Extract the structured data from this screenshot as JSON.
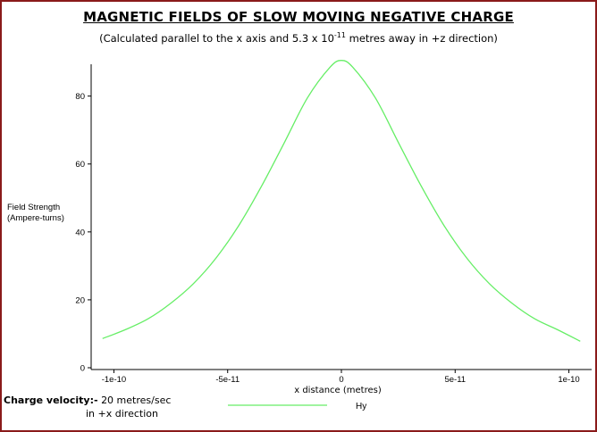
{
  "title": "MAGNETIC FIELDS OF SLOW MOVING NEGATIVE CHARGE",
  "subtitle": {
    "before": "(Calculated parallel to the x axis and 5.3 x 10",
    "exponent": "-11",
    "after": " metres away in +z direction)"
  },
  "ylabel_line1": "Field Strength",
  "ylabel_line2": "(Ampere-turns)",
  "xlabel": "x distance (metres)",
  "velocity": {
    "label": "Charge velocity:-",
    "line1": "20 metres/sec",
    "line2": "in +x direction"
  },
  "colors": {
    "frame": "#8a1a1a",
    "series": "#66ee66",
    "axis": "#000000"
  },
  "chart_data": {
    "type": "line",
    "title": "MAGNETIC FIELDS OF SLOW MOVING NEGATIVE CHARGE",
    "xlabel": "x distance (metres)",
    "ylabel": "Field Strength (Ampere-turns)",
    "xlim": [
      -1.1e-10,
      1.1e-10
    ],
    "ylim": [
      0,
      92
    ],
    "x_ticks": [
      -1e-10,
      -5e-11,
      0,
      5e-11,
      1e-10
    ],
    "x_tick_labels": [
      "-1e-10",
      "-5e-11",
      "0",
      "5e-11",
      "1e-10"
    ],
    "y_ticks": [
      0,
      20,
      40,
      60,
      80
    ],
    "y_tick_labels": [
      "0",
      "20",
      "40",
      "60",
      "80"
    ],
    "grid": false,
    "legend_position": "bottom",
    "series": [
      {
        "name": "Hy",
        "x": [
          -1.05e-10,
          -9.5e-11,
          -8.5e-11,
          -7.5e-11,
          -6.5e-11,
          -5.5e-11,
          -4.5e-11,
          -3.5e-11,
          -2.5e-11,
          -1.5e-11,
          -5e-12,
          0,
          5e-12,
          1.5e-11,
          2.5e-11,
          3.5e-11,
          4.5e-11,
          5.5e-11,
          6.5e-11,
          7.5e-11,
          8.5e-11,
          9.5e-11,
          1.05e-10
        ],
        "y": [
          8.6,
          11.2,
          14.4,
          19.0,
          24.8,
          32.4,
          42.0,
          53.6,
          66.4,
          79.4,
          88.5,
          90.5,
          88.5,
          79.4,
          66.4,
          53.6,
          42.0,
          32.4,
          24.8,
          19.0,
          14.4,
          11.2,
          7.8
        ]
      }
    ]
  }
}
